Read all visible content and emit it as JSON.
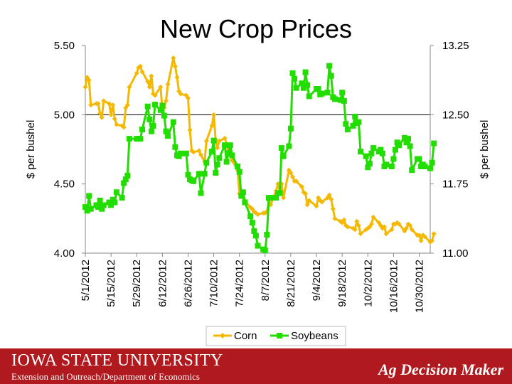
{
  "chart_data": {
    "type": "line",
    "title": "New Crop Prices",
    "ylabel_left": "$ per bushel",
    "ylabel_right": "$ per bushel",
    "y_left": {
      "min": 4.0,
      "max": 5.5,
      "ticks": [
        "4.00",
        "4.50",
        "5.00",
        "5.50"
      ]
    },
    "y_right": {
      "min": 11.0,
      "max": 13.25,
      "ticks": [
        "11.00",
        "11.75",
        "12.50",
        "13.25"
      ]
    },
    "x_tick_labels": [
      "5/1/2012",
      "5/15/2012",
      "5/29/2012",
      "6/12/2012",
      "6/26/2012",
      "7/10/2012",
      "7/24/2012",
      "8/7/2012",
      "8/21/2012",
      "9/4/2012",
      "9/18/2012",
      "10/2/2012",
      "10/16/2012",
      "10/30/2012"
    ],
    "x_range": [
      "5/1/2012",
      "11/5/2012"
    ],
    "reference_line": {
      "axis": "left",
      "value": 5.0
    },
    "legend_position": "bottom",
    "series": [
      {
        "name": "Corn",
        "axis": "left",
        "color": "#f5b800",
        "marker": "diamond",
        "points": [
          [
            "5/1/2012",
            5.2
          ],
          [
            "5/2/2012",
            5.27
          ],
          [
            "5/3/2012",
            5.25
          ],
          [
            "5/4/2012",
            5.07
          ],
          [
            "5/7/2012",
            5.08
          ],
          [
            "5/8/2012",
            5.08
          ],
          [
            "5/9/2012",
            5.01
          ],
          [
            "5/10/2012",
            4.98
          ],
          [
            "5/11/2012",
            5.1
          ],
          [
            "5/14/2012",
            5.08
          ],
          [
            "5/15/2012",
            5.0
          ],
          [
            "5/16/2012",
            5.07
          ],
          [
            "5/17/2012",
            4.97
          ],
          [
            "5/18/2012",
            4.93
          ],
          [
            "5/21/2012",
            4.92
          ],
          [
            "5/22/2012",
            4.91
          ],
          [
            "5/23/2012",
            5.05
          ],
          [
            "5/24/2012",
            5.07
          ],
          [
            "5/25/2012",
            5.2
          ],
          [
            "5/29/2012",
            5.3
          ],
          [
            "5/30/2012",
            5.34
          ],
          [
            "5/31/2012",
            5.35
          ],
          [
            "6/1/2012",
            5.31
          ],
          [
            "6/4/2012",
            5.24
          ],
          [
            "6/5/2012",
            5.2
          ],
          [
            "6/6/2012",
            5.28
          ],
          [
            "6/7/2012",
            5.15
          ],
          [
            "6/8/2012",
            5.14
          ],
          [
            "6/11/2012",
            5.2
          ],
          [
            "6/12/2012",
            5.03
          ],
          [
            "6/13/2012",
            5.05
          ],
          [
            "6/14/2012",
            5.1
          ],
          [
            "6/15/2012",
            5.22
          ],
          [
            "6/18/2012",
            5.41
          ],
          [
            "6/19/2012",
            5.35
          ],
          [
            "6/20/2012",
            5.27
          ],
          [
            "6/21/2012",
            5.17
          ],
          [
            "6/22/2012",
            5.15
          ],
          [
            "6/25/2012",
            5.14
          ],
          [
            "6/26/2012",
            5.12
          ],
          [
            "6/27/2012",
            4.89
          ],
          [
            "6/28/2012",
            4.74
          ],
          [
            "6/29/2012",
            4.73
          ],
          [
            "7/2/2012",
            4.74
          ],
          [
            "7/3/2012",
            4.71
          ],
          [
            "7/5/2012",
            4.66
          ],
          [
            "7/6/2012",
            4.81
          ],
          [
            "7/9/2012",
            4.92
          ],
          [
            "7/10/2012",
            5.0
          ],
          [
            "7/11/2012",
            4.82
          ],
          [
            "7/12/2012",
            4.76
          ],
          [
            "7/13/2012",
            4.81
          ],
          [
            "7/16/2012",
            4.83
          ],
          [
            "7/17/2012",
            4.79
          ],
          [
            "7/18/2012",
            4.75
          ],
          [
            "7/19/2012",
            4.71
          ],
          [
            "7/20/2012",
            4.67
          ],
          [
            "7/23/2012",
            4.6
          ],
          [
            "7/24/2012",
            4.43
          ],
          [
            "7/25/2012",
            4.42
          ],
          [
            "7/26/2012",
            4.4
          ],
          [
            "7/27/2012",
            4.38
          ],
          [
            "7/30/2012",
            4.33
          ],
          [
            "7/31/2012",
            4.32
          ],
          [
            "8/1/2012",
            4.3
          ],
          [
            "8/2/2012",
            4.29
          ],
          [
            "8/3/2012",
            4.28
          ],
          [
            "8/6/2012",
            4.29
          ],
          [
            "8/7/2012",
            4.29
          ],
          [
            "8/8/2012",
            4.3
          ],
          [
            "8/9/2012",
            4.38
          ],
          [
            "8/10/2012",
            4.35
          ],
          [
            "8/13/2012",
            4.45
          ],
          [
            "8/14/2012",
            4.5
          ],
          [
            "8/15/2012",
            4.45
          ],
          [
            "8/16/2012",
            4.5
          ],
          [
            "8/17/2012",
            4.4
          ],
          [
            "8/20/2012",
            4.6
          ],
          [
            "8/21/2012",
            4.58
          ],
          [
            "8/22/2012",
            4.55
          ],
          [
            "8/23/2012",
            4.52
          ],
          [
            "8/24/2012",
            4.52
          ],
          [
            "8/27/2012",
            4.48
          ],
          [
            "8/28/2012",
            4.44
          ],
          [
            "8/29/2012",
            4.43
          ],
          [
            "8/30/2012",
            4.35
          ],
          [
            "8/31/2012",
            4.38
          ],
          [
            "9/4/2012",
            4.34
          ],
          [
            "9/5/2012",
            4.4
          ],
          [
            "9/6/2012",
            4.38
          ],
          [
            "9/7/2012",
            4.37
          ],
          [
            "9/10/2012",
            4.4
          ],
          [
            "9/11/2012",
            4.42
          ],
          [
            "9/12/2012",
            4.39
          ],
          [
            "9/13/2012",
            4.32
          ],
          [
            "9/14/2012",
            4.25
          ],
          [
            "9/17/2012",
            4.23
          ],
          [
            "9/18/2012",
            4.22
          ],
          [
            "9/19/2012",
            4.24
          ],
          [
            "9/20/2012",
            4.2
          ],
          [
            "9/21/2012",
            4.19
          ],
          [
            "9/24/2012",
            4.18
          ],
          [
            "9/25/2012",
            4.17
          ],
          [
            "9/26/2012",
            4.23
          ],
          [
            "9/27/2012",
            4.2
          ],
          [
            "9/28/2012",
            4.14
          ],
          [
            "10/1/2012",
            4.17
          ],
          [
            "10/2/2012",
            4.18
          ],
          [
            "10/3/2012",
            4.19
          ],
          [
            "10/4/2012",
            4.21
          ],
          [
            "10/5/2012",
            4.26
          ],
          [
            "10/8/2012",
            4.22
          ],
          [
            "10/9/2012",
            4.2
          ],
          [
            "10/10/2012",
            4.18
          ],
          [
            "10/11/2012",
            4.19
          ],
          [
            "10/12/2012",
            4.14
          ],
          [
            "10/15/2012",
            4.17
          ],
          [
            "10/16/2012",
            4.21
          ],
          [
            "10/17/2012",
            4.21
          ],
          [
            "10/18/2012",
            4.22
          ],
          [
            "10/19/2012",
            4.21
          ],
          [
            "10/22/2012",
            4.16
          ],
          [
            "10/23/2012",
            4.18
          ],
          [
            "10/24/2012",
            4.21
          ],
          [
            "10/25/2012",
            4.2
          ],
          [
            "10/26/2012",
            4.17
          ],
          [
            "10/29/2012",
            4.13
          ],
          [
            "10/30/2012",
            4.13
          ],
          [
            "10/31/2012",
            4.09
          ],
          [
            "11/1/2012",
            4.13
          ],
          [
            "11/2/2012",
            4.12
          ],
          [
            "11/5/2012",
            4.08
          ],
          [
            "11/6/2012",
            4.09
          ],
          [
            "11/7/2012",
            4.14
          ]
        ]
      },
      {
        "name": "Soybeans",
        "axis": "right",
        "color": "#22dd00",
        "marker": "square",
        "points": [
          [
            "5/1/2012",
            11.5
          ],
          [
            "5/2/2012",
            11.46
          ],
          [
            "5/3/2012",
            11.62
          ],
          [
            "5/4/2012",
            11.48
          ],
          [
            "5/7/2012",
            11.52
          ],
          [
            "5/8/2012",
            11.5
          ],
          [
            "5/9/2012",
            11.57
          ],
          [
            "5/10/2012",
            11.48
          ],
          [
            "5/11/2012",
            11.52
          ],
          [
            "5/14/2012",
            11.55
          ],
          [
            "5/15/2012",
            11.52
          ],
          [
            "5/16/2012",
            11.58
          ],
          [
            "5/17/2012",
            11.55
          ],
          [
            "5/18/2012",
            11.66
          ],
          [
            "5/21/2012",
            11.6
          ],
          [
            "5/22/2012",
            11.76
          ],
          [
            "5/23/2012",
            11.8
          ],
          [
            "5/24/2012",
            11.84
          ],
          [
            "5/25/2012",
            12.24
          ],
          [
            "5/29/2012",
            12.24
          ],
          [
            "5/30/2012",
            12.24
          ],
          [
            "5/31/2012",
            12.24
          ],
          [
            "6/1/2012",
            12.34
          ],
          [
            "6/4/2012",
            12.59
          ],
          [
            "6/5/2012",
            12.45
          ],
          [
            "6/6/2012",
            12.32
          ],
          [
            "6/7/2012",
            12.38
          ],
          [
            "6/8/2012",
            12.61
          ],
          [
            "6/11/2012",
            12.55
          ],
          [
            "6/12/2012",
            12.6
          ],
          [
            "6/13/2012",
            12.49
          ],
          [
            "6/14/2012",
            12.32
          ],
          [
            "6/15/2012",
            12.27
          ],
          [
            "6/18/2012",
            12.42
          ],
          [
            "6/19/2012",
            12.15
          ],
          [
            "6/20/2012",
            12.06
          ],
          [
            "6/21/2012",
            12.05
          ],
          [
            "6/22/2012",
            12.08
          ],
          [
            "6/25/2012",
            12.08
          ],
          [
            "6/26/2012",
            11.85
          ],
          [
            "6/27/2012",
            11.8
          ],
          [
            "6/28/2012",
            11.79
          ],
          [
            "6/29/2012",
            11.78
          ],
          [
            "7/2/2012",
            11.86
          ],
          [
            "7/3/2012",
            11.65
          ],
          [
            "7/5/2012",
            11.86
          ],
          [
            "7/6/2012",
            11.98
          ],
          [
            "7/9/2012",
            12.1
          ],
          [
            "7/10/2012",
            12.22
          ],
          [
            "7/11/2012",
            11.87
          ],
          [
            "7/12/2012",
            11.96
          ],
          [
            "7/13/2012",
            12.03
          ],
          [
            "7/16/2012",
            12.17
          ],
          [
            "7/17/2012",
            11.99
          ],
          [
            "7/18/2012",
            12.08
          ],
          [
            "7/19/2012",
            12.17
          ],
          [
            "7/20/2012",
            12.06
          ],
          [
            "7/23/2012",
            11.94
          ],
          [
            "7/24/2012",
            11.88
          ],
          [
            "7/25/2012",
            11.62
          ],
          [
            "7/26/2012",
            11.66
          ],
          [
            "7/27/2012",
            11.55
          ],
          [
            "7/30/2012",
            11.4
          ],
          [
            "7/31/2012",
            11.33
          ],
          [
            "8/1/2012",
            11.24
          ],
          [
            "8/2/2012",
            11.19
          ],
          [
            "8/3/2012",
            11.08
          ],
          [
            "8/6/2012",
            11.04
          ],
          [
            "8/7/2012",
            11.03
          ],
          [
            "8/8/2012",
            11.2
          ],
          [
            "8/9/2012",
            11.6
          ],
          [
            "8/10/2012",
            11.6
          ],
          [
            "8/13/2012",
            11.6
          ],
          [
            "8/14/2012",
            11.65
          ],
          [
            "8/15/2012",
            11.65
          ],
          [
            "8/16/2012",
            12.14
          ],
          [
            "8/17/2012",
            12.05
          ],
          [
            "8/20/2012",
            12.16
          ],
          [
            "8/21/2012",
            12.35
          ],
          [
            "8/22/2012",
            12.95
          ],
          [
            "8/23/2012",
            12.89
          ],
          [
            "8/24/2012",
            12.79
          ],
          [
            "8/27/2012",
            12.84
          ],
          [
            "8/28/2012",
            12.79
          ],
          [
            "8/29/2012",
            12.96
          ],
          [
            "8/30/2012",
            12.82
          ],
          [
            "8/31/2012",
            12.7
          ],
          [
            "9/4/2012",
            12.78
          ],
          [
            "9/5/2012",
            12.78
          ],
          [
            "9/6/2012",
            12.72
          ],
          [
            "9/7/2012",
            12.73
          ],
          [
            "9/10/2012",
            12.74
          ],
          [
            "9/11/2012",
            13.03
          ],
          [
            "9/12/2012",
            12.92
          ],
          [
            "9/13/2012",
            12.69
          ],
          [
            "9/14/2012",
            12.67
          ],
          [
            "9/17/2012",
            12.66
          ],
          [
            "9/18/2012",
            12.74
          ],
          [
            "9/19/2012",
            12.65
          ],
          [
            "9/20/2012",
            12.4
          ],
          [
            "9/21/2012",
            12.34
          ],
          [
            "9/24/2012",
            12.38
          ],
          [
            "9/25/2012",
            12.48
          ],
          [
            "9/26/2012",
            12.41
          ],
          [
            "9/27/2012",
            12.42
          ],
          [
            "9/28/2012",
            12.1
          ],
          [
            "10/1/2012",
            12.05
          ],
          [
            "10/2/2012",
            11.93
          ],
          [
            "10/3/2012",
            11.97
          ],
          [
            "10/4/2012",
            12.08
          ],
          [
            "10/5/2012",
            12.14
          ],
          [
            "10/8/2012",
            12.1
          ],
          [
            "10/9/2012",
            12.12
          ],
          [
            "10/10/2012",
            12.08
          ],
          [
            "10/11/2012",
            11.94
          ],
          [
            "10/12/2012",
            11.96
          ],
          [
            "10/15/2012",
            11.94
          ],
          [
            "10/16/2012",
            12.02
          ],
          [
            "10/17/2012",
            12.12
          ],
          [
            "10/18/2012",
            12.2
          ],
          [
            "10/19/2012",
            12.17
          ],
          [
            "10/22/2012",
            12.25
          ],
          [
            "10/23/2012",
            12.2
          ],
          [
            "10/24/2012",
            12.24
          ],
          [
            "10/25/2012",
            12.16
          ],
          [
            "10/26/2012",
            11.9
          ],
          [
            "10/29/2012",
            12.02
          ],
          [
            "10/30/2012",
            12.02
          ],
          [
            "10/31/2012",
            11.94
          ],
          [
            "11/1/2012",
            11.96
          ],
          [
            "11/2/2012",
            11.94
          ],
          [
            "11/5/2012",
            11.92
          ],
          [
            "11/6/2012",
            11.98
          ],
          [
            "11/7/2012",
            12.19
          ]
        ]
      }
    ]
  },
  "footer": {
    "university": "IOWA STATE UNIVERSITY",
    "department": "Extension and Outreach/Department of Economics",
    "brand": "Ag Decision Maker"
  },
  "colors": {
    "footer_bg": "#b0191e",
    "corn": "#f5b800",
    "soybeans": "#22dd00"
  }
}
